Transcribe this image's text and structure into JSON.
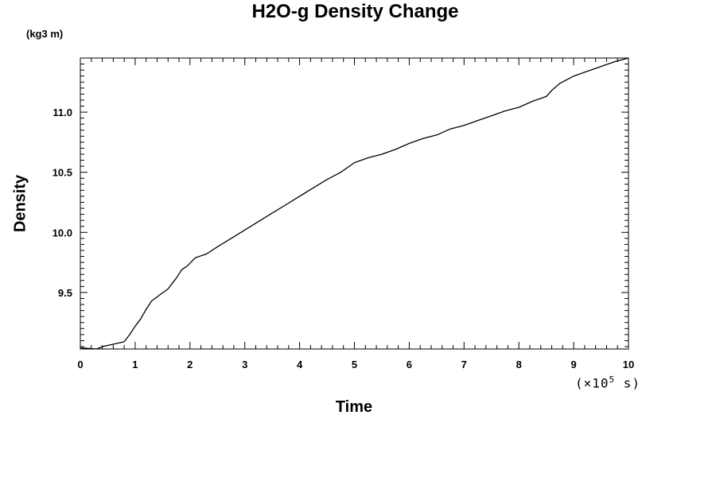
{
  "chart_data": {
    "type": "line",
    "title": "H2O-g Density Change",
    "ylabel": "Density",
    "y_unit": "(kg3 m)",
    "xlabel": "Time",
    "x_scale_note_prefix": "(×10",
    "x_scale_note_exp": "5",
    "x_scale_note_suffix": " s)",
    "xlim": [
      0,
      10
    ],
    "ylim": [
      9.03,
      11.45
    ],
    "x_ticks": [
      0,
      1,
      2,
      3,
      4,
      5,
      6,
      7,
      8,
      9,
      10
    ],
    "x_tick_labels": [
      "0",
      "1",
      "2",
      "3",
      "4",
      "5",
      "6",
      "7",
      "8",
      "9",
      "10"
    ],
    "y_ticks": [
      9.5,
      10.0,
      10.5,
      11.0
    ],
    "y_tick_labels": [
      "9.5",
      "10.0",
      "10.5",
      "11.0"
    ],
    "grid": false,
    "line_color": "#000000",
    "series": [
      {
        "x": [
          0,
          0.3,
          0.4,
          0.6,
          0.8,
          0.9,
          1.0,
          1.1,
          1.2,
          1.3,
          1.45,
          1.6,
          1.75,
          1.85,
          1.95,
          2.1,
          2.3,
          2.5,
          2.75,
          3.0,
          3.25,
          3.5,
          3.75,
          4.0,
          4.25,
          4.5,
          4.75,
          5.0,
          5.25,
          5.5,
          5.75,
          6.0,
          6.25,
          6.5,
          6.75,
          7.0,
          7.25,
          7.5,
          7.75,
          8.0,
          8.25,
          8.5,
          8.6,
          8.75,
          9.0,
          9.25,
          9.5,
          9.75,
          10.0
        ],
        "y": [
          9.04,
          9.03,
          9.05,
          9.07,
          9.09,
          9.15,
          9.22,
          9.28,
          9.36,
          9.43,
          9.48,
          9.53,
          9.62,
          9.69,
          9.72,
          9.79,
          9.82,
          9.88,
          9.95,
          10.02,
          10.09,
          10.16,
          10.23,
          10.3,
          10.37,
          10.44,
          10.5,
          10.58,
          10.62,
          10.65,
          10.69,
          10.74,
          10.78,
          10.81,
          10.86,
          10.89,
          10.93,
          10.97,
          11.01,
          11.04,
          11.09,
          11.13,
          11.18,
          11.24,
          11.3,
          11.34,
          11.38,
          11.42,
          11.45
        ]
      }
    ]
  }
}
